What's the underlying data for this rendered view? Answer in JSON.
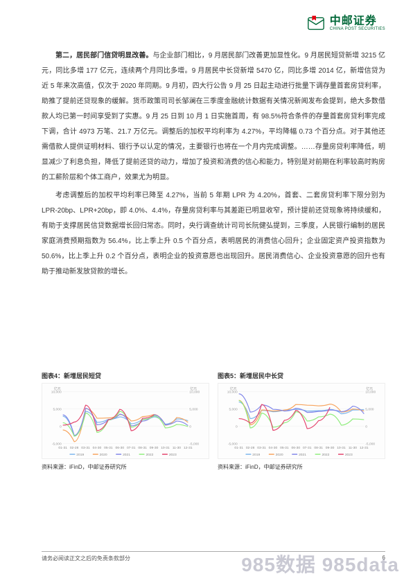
{
  "header": {
    "logo_cn": "中邮证券",
    "logo_en": "CHINA POST SECURITIES"
  },
  "body": {
    "p1_lead": "第二，居民部门信贷明显改善。",
    "p1": "与企业部门相比，9 月居民部门改善更加显性化。9 月居民短贷新增 3215 亿元，同比多增 177 亿元，连续两个月同比多增。9 月居民中长贷新增 5470 亿，同比多增 2014 亿，新增信贷为近 5 年来次高值，仅次于 2020 年同期。9 月初，四大行公告 9 月 25 日起主动进行批量下调存量首套房贷利率，助推了提前还贷现象的缓解。货币政策司司长邹澜在三季度金融统计数据有关情况新闻发布会提到，绝大多数借款人均已第一时间享受到了实惠。9 月 25 日到 10 月 1 日实施首周，有 98.5%符合条件的存量首套房贷利率完成下调，合计 4973 万笔、21.7 万亿元。调整后的加权平均利率为 4.27%，平均降幅 0.73 个百分点。对于其他还需借款人提供证明材料、银行予以认定的情况，主要银行也将在一个月内完成调整。……存量房贷利率降低，明显减少了利息负担，降低了提前还贷的动力，增加了投资和消费的信心和能力，特别是对前期在利率较高时购房的工薪阶层和个体工商户，效果尤为明显。",
    "p2": "考虑调整后的加权平均利率已降至 4.27%，当前 5 年期 LPR 为 4.20%，首套、二套房贷利率下限分别为 LPR-20bp、LPR+20bp，即 4.0%、4.4%，存量房贷利率与其差距已明显收窄，预计提前还贷现象将持续缓和，有助于支撑居民信贷数据增长回归常态。同时，央行调查统计司司长阮健弘提到，三季度，人民银行编制的居民家庭消费预期指数为 56.4%，比上季上升 0.5 个百分点，表明居民的消费信心回升；企业固定资产投资指数为 50.6%，比上季上升 0.2 个百分点，表明企业的投资意愿也出现回升。居民消费信心、企业投资意愿的回升也有助于推动新发放贷款的增长。"
  },
  "chart4": {
    "title": "图表4：新增居民短贷",
    "source": "资料来源：iFinD，中邮证券研究所",
    "y_label_left": "亿元",
    "y_label_right": "亿元",
    "y_ticks_left": [
      "10,000",
      "5,000",
      "0",
      "-5,000"
    ],
    "y_ticks_right": [
      "10,000",
      "5,000",
      "0",
      "-5,000"
    ],
    "x_ticks": [
      "01-31",
      "02-28",
      "03-31",
      "04-30",
      "05-31",
      "06-30",
      "07-31",
      "08-31",
      "09-30",
      "10-31",
      "11-30",
      "12-31"
    ],
    "legend": [
      "2019",
      "2020",
      "2021",
      "2022",
      "2023"
    ],
    "series": {
      "2019": {
        "color": "#7cb5ec",
        "values": [
          2900,
          -2900,
          4300,
          1100,
          2000,
          2700,
          700,
          2000,
          2700,
          600,
          2100,
          1600
        ]
      },
      "2020": {
        "color": "#f7a35c",
        "values": [
          -1100,
          -4500,
          5100,
          2300,
          2400,
          3400,
          1500,
          2800,
          3400,
          300,
          2500,
          1100
        ]
      },
      "2021": {
        "color": "#8085e9",
        "values": [
          3300,
          -2700,
          5200,
          400,
          1800,
          3500,
          100,
          1500,
          3300,
          400,
          1500,
          200
        ]
      },
      "2022": {
        "color": "#90ed7d",
        "values": [
          1000,
          -2900,
          3800,
          -1800,
          1800,
          4300,
          -300,
          1900,
          3000,
          -500,
          500,
          -100
        ]
      },
      "2023": {
        "color": "#e4436c",
        "values": [
          300,
          1200,
          6100,
          -1300,
          1900,
          4900,
          -1300,
          2300,
          3200,
          null,
          null,
          null
        ]
      }
    },
    "ylim": [
      -5000,
      10000
    ],
    "background_color": "#ffffff",
    "grid_color": "#eeeeee"
  },
  "chart5": {
    "title": "图表5：新增居民中长贷",
    "source": "资料来源：iFinD，中邮证券研究所",
    "y_label_left": "亿元",
    "y_label_right": "亿元",
    "y_ticks_left": [
      "10,000",
      "5,000",
      "0",
      "-5,000"
    ],
    "y_ticks_right": [
      "10,000",
      "5,000",
      "0",
      "-5,000"
    ],
    "x_ticks": [
      "01-31",
      "02-28",
      "03-31",
      "04-30",
      "05-31",
      "06-30",
      "07-31",
      "08-31",
      "09-30",
      "10-31",
      "11-30",
      "12-31"
    ],
    "legend": [
      "2019",
      "2020",
      "2021",
      "2022",
      "2023"
    ],
    "series": {
      "2019": {
        "color": "#7cb5ec",
        "values": [
          7000,
          2200,
          4600,
          4200,
          4700,
          4900,
          4400,
          4500,
          4900,
          3600,
          4700,
          4800
        ]
      },
      "2020": {
        "color": "#f7a35c",
        "values": [
          7500,
          400,
          4700,
          4400,
          4700,
          6300,
          6100,
          5900,
          6400,
          4100,
          5000,
          4400
        ]
      },
      "2021": {
        "color": "#8085e9",
        "values": [
          9400,
          4100,
          6200,
          4900,
          4400,
          5200,
          4000,
          4300,
          4700,
          4200,
          5800,
          3600
        ]
      },
      "2022": {
        "color": "#90ed7d",
        "values": [
          7400,
          -500,
          3800,
          -300,
          1000,
          4200,
          1500,
          2700,
          3500,
          300,
          2100,
          1900
        ]
      },
      "2023": {
        "color": "#e4436c",
        "values": [
          2200,
          900,
          6300,
          -1200,
          1700,
          4600,
          -700,
          1600,
          5500,
          null,
          null,
          null
        ]
      }
    },
    "ylim": [
      -5000,
      10000
    ],
    "background_color": "#ffffff",
    "grid_color": "#eeeeee"
  },
  "footer": {
    "disclaimer": "请务必阅读正文之后的免责条款部分",
    "page": "6"
  },
  "watermark": "985数据 985data"
}
